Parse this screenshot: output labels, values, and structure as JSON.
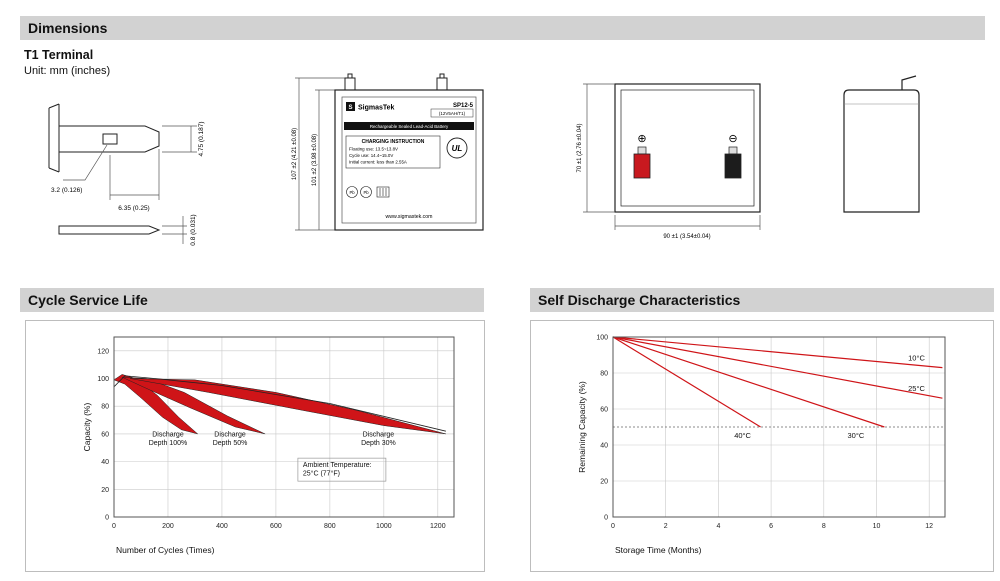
{
  "page": {
    "header": "Dimensions",
    "terminal_title": "T1 Terminal",
    "unit_note": "Unit: mm (inches)"
  },
  "sections": {
    "cycle_title": "Cycle Service Life",
    "self_discharge_title": "Self Discharge Characteristics"
  },
  "colors": {
    "accent_red": "#cf1418",
    "header_gray": "#d2d2d2",
    "grid_gray": "#c9c9c9"
  },
  "drawings": {
    "terminal": {
      "dim_hole": "3.2 (0.126)",
      "dim_width": "6.35 (0.25)",
      "dim_height": "4.75 (0.187)",
      "dim_thickness": "0.8 (0.031)"
    },
    "front": {
      "dim_total_height": "107 ±2 (4.21 ±0.08)",
      "dim_case_height": "101 ±2 (3.98 ±0.08)",
      "label": {
        "logo_letter": "S",
        "brand": "SigmasTek",
        "model": "SP12-5",
        "spec": "(12V5AH/T1)",
        "type_line": "Rechargeable Sealed Lead-Acid Battery",
        "charging_title": "CHARGING INSTRUCTION",
        "charging_line1": "Floating use: 13.5~13.8V",
        "charging_line2": "Cycle use: 14.4~15.0V",
        "charging_line3": "Initial current: less than 2.55A",
        "ul_text": "UL",
        "pb_text": "Pb",
        "website": "www.sigmastek.com"
      }
    },
    "top": {
      "dim_height": "70 ±1 (2.76 ±0.04)",
      "dim_width": "90 ±1 (3.54±0.04)",
      "plus_symbol": "⊕",
      "minus_symbol": "⊖"
    }
  },
  "chart_data": [
    {
      "id": "cycle-service-life",
      "type": "area",
      "title": "Cycle Service Life",
      "xlabel": "Number of Cycles (Times)",
      "ylabel": "Capacity (%)",
      "xlim": [
        0,
        1260
      ],
      "ylim": [
        0,
        130
      ],
      "xticks": [
        0,
        200,
        400,
        600,
        800,
        1000,
        1200
      ],
      "yticks": [
        0,
        20,
        40,
        60,
        80,
        100,
        120
      ],
      "grid": true,
      "color": "#cf1418",
      "envelope": [
        [
          0,
          94
        ],
        [
          40,
          102
        ],
        [
          150,
          100
        ],
        [
          400,
          95
        ],
        [
          800,
          82
        ],
        [
          1230,
          62
        ]
      ],
      "bands": [
        {
          "name": "Discharge Depth 100%",
          "upper": [
            [
              0,
              99
            ],
            [
              30,
              103
            ],
            [
              80,
              100
            ],
            [
              160,
              88
            ],
            [
              240,
              72
            ],
            [
              310,
              60
            ]
          ],
          "lower": [
            [
              0,
              99
            ],
            [
              40,
              96
            ],
            [
              100,
              86
            ],
            [
              180,
              72
            ],
            [
              250,
              63
            ],
            [
              310,
              60
            ]
          ]
        },
        {
          "name": "Discharge Depth 50%",
          "upper": [
            [
              30,
              101
            ],
            [
              120,
              100
            ],
            [
              260,
              90
            ],
            [
              420,
              73
            ],
            [
              560,
              60
            ]
          ],
          "lower": [
            [
              30,
              101
            ],
            [
              130,
              92
            ],
            [
              280,
              79
            ],
            [
              450,
              65
            ],
            [
              560,
              60
            ]
          ]
        },
        {
          "name": "Discharge Depth 30%",
          "upper": [
            [
              60,
              100
            ],
            [
              300,
              99
            ],
            [
              600,
              90
            ],
            [
              900,
              77
            ],
            [
              1230,
              60
            ]
          ],
          "lower": [
            [
              60,
              100
            ],
            [
              350,
              90
            ],
            [
              700,
              77
            ],
            [
              1000,
              66
            ],
            [
              1230,
              60
            ]
          ]
        }
      ],
      "annotations": [
        {
          "lines": [
            "Discharge",
            "Depth 100%"
          ],
          "x": 200,
          "y": 58,
          "align": "center"
        },
        {
          "lines": [
            "Discharge",
            "Depth 50%"
          ],
          "x": 430,
          "y": 58,
          "align": "center"
        },
        {
          "lines": [
            "Discharge",
            "Depth 30%"
          ],
          "x": 980,
          "y": 58,
          "align": "center"
        },
        {
          "lines": [
            "Ambient Temperature:",
            "25°C (77°F)"
          ],
          "x": 700,
          "y": 36,
          "align": "left",
          "boxed": true
        }
      ]
    },
    {
      "id": "self-discharge",
      "type": "line",
      "title": "Self Discharge Characteristics",
      "xlabel": "Storage Time (Months)",
      "ylabel": "Remaining Capacity (%)",
      "xlim": [
        0,
        12.6
      ],
      "ylim": [
        0,
        100
      ],
      "xticks": [
        0,
        2,
        4,
        6,
        8,
        10,
        12
      ],
      "yticks": [
        0,
        20,
        40,
        60,
        80,
        100
      ],
      "grid": true,
      "color": "#cf1418",
      "ref_line": {
        "y": 50,
        "style": "dashed"
      },
      "series": [
        {
          "name": "10°C",
          "points": [
            [
              0,
              100
            ],
            [
              12.5,
              83
            ]
          ],
          "label_at": [
            11.2,
            87
          ]
        },
        {
          "name": "25°C",
          "points": [
            [
              0,
              100
            ],
            [
              12.5,
              66
            ]
          ],
          "label_at": [
            11.2,
            70
          ]
        },
        {
          "name": "30°C",
          "points": [
            [
              0,
              100
            ],
            [
              10.3,
              50
            ]
          ],
          "label_at": [
            8.9,
            44
          ]
        },
        {
          "name": "40°C",
          "points": [
            [
              0,
              100
            ],
            [
              5.6,
              50
            ]
          ],
          "label_at": [
            4.6,
            44
          ]
        }
      ]
    }
  ]
}
